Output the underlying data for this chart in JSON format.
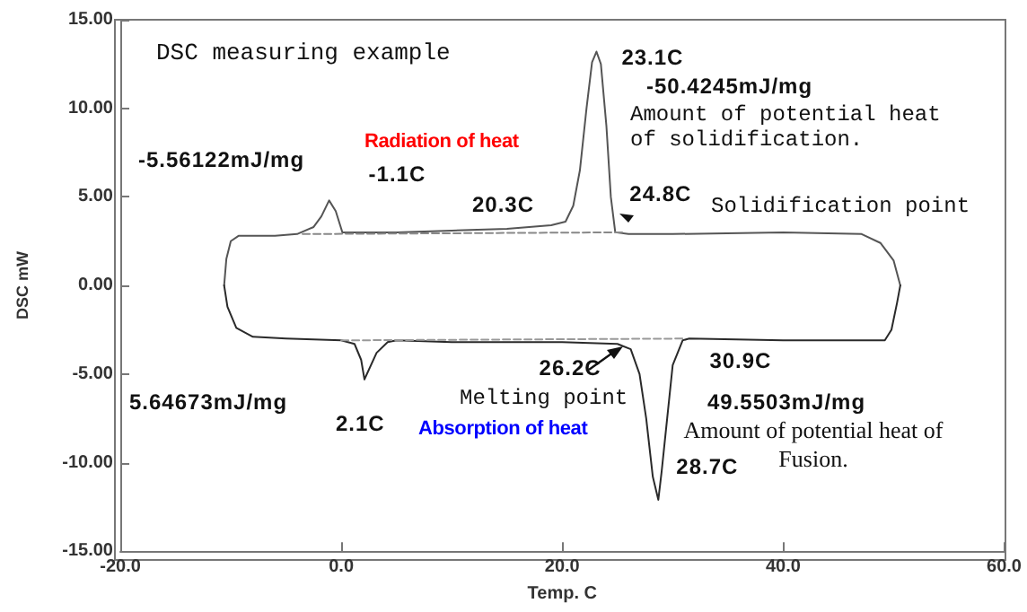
{
  "chart_data": {
    "type": "line",
    "title": "DSC measuring example",
    "xlabel": "Temp. C",
    "ylabel": "DSC mW",
    "xlim": [
      -20,
      60
    ],
    "ylim": [
      -15,
      15
    ],
    "xticks": [
      {
        "value": -20,
        "label": "-20.0"
      },
      {
        "value": 0,
        "label": "0.0"
      },
      {
        "value": 20,
        "label": "20.0"
      },
      {
        "value": 40,
        "label": "40.0"
      },
      {
        "value": 60,
        "label": "60.0"
      }
    ],
    "yticks": [
      {
        "value": -15,
        "label": "-15.00"
      },
      {
        "value": -10,
        "label": "-10.00"
      },
      {
        "value": -5,
        "label": "-5.00"
      },
      {
        "value": 0,
        "label": "0.00"
      },
      {
        "value": 5,
        "label": "5.00"
      },
      {
        "value": 10,
        "label": "10.00"
      },
      {
        "value": 15,
        "label": "15.00"
      }
    ],
    "grid": false,
    "marker": "none",
    "series": [
      {
        "color": "#555555",
        "line_style": "solid",
        "x": [
          -10.6,
          -10.4,
          -10.0,
          -9.3,
          -6,
          -4,
          -2.5,
          -1.8,
          -1.1,
          -0.5,
          0.1,
          5,
          10,
          15,
          19,
          20.3,
          21,
          21.6,
          22.2,
          22.7,
          23.1,
          23.5,
          24,
          24.4,
          24.8,
          26,
          30,
          40,
          47.1,
          48.8,
          50,
          50.6
        ],
        "values": [
          0,
          1.5,
          2.5,
          2.8,
          2.8,
          2.9,
          3.3,
          3.9,
          4.8,
          4.2,
          3.0,
          3.0,
          3.1,
          3.2,
          3.4,
          3.6,
          4.5,
          6.5,
          10,
          12.6,
          13.2,
          12.5,
          9,
          5,
          3.0,
          2.9,
          2.9,
          3.0,
          2.9,
          2.4,
          1.4,
          0
        ]
      },
      {
        "color": "#2a2a2a",
        "line_style": "solid",
        "x": [
          -10.6,
          -10.3,
          -9.5,
          -8,
          -5,
          0,
          1.2,
          1.8,
          2.1,
          3.2,
          4.2,
          5,
          10,
          20,
          25,
          26.2,
          27,
          27.6,
          28.2,
          28.7,
          29,
          29.5,
          30,
          30.9,
          31.5,
          40,
          49.2,
          49.8,
          50.3,
          50.6
        ],
        "values": [
          0,
          -1.2,
          -2.4,
          -2.9,
          -3.0,
          -3.1,
          -3.3,
          -4.2,
          -5.3,
          -3.8,
          -3.2,
          -3.1,
          -3.2,
          -3.2,
          -3.3,
          -3.6,
          -5,
          -7.5,
          -10.8,
          -12.1,
          -10.5,
          -7.5,
          -4.5,
          -3.1,
          -3.0,
          -3.1,
          -3.1,
          -2.5,
          -1,
          0
        ]
      },
      {
        "color": "#888888",
        "line_style": "dashed",
        "x": [
          -3.5,
          25.5
        ],
        "values": [
          2.9,
          3.0
        ]
      },
      {
        "color": "#999999",
        "line_style": "dashed",
        "x": [
          0,
          31
        ],
        "values": [
          -3.1,
          -3.0
        ]
      }
    ],
    "annotations": [
      "-5.56122mJ/mg",
      {
        "text": "-1.1C",
        "x": -1.1,
        "y": 4.8
      },
      {
        "text": "20.3C",
        "x": 20.3,
        "y": 3.6
      },
      {
        "text": "23.1C",
        "x": 23.1,
        "y": 13.2
      },
      "-50.4245mJ/mg",
      "Amount of potential heat of solidification.",
      {
        "text": "24.8C",
        "x": 24.8,
        "y": 3.0
      },
      "Solidification point",
      "Radiation of heat",
      "5.64673mJ/mg",
      {
        "text": "2.1C",
        "x": 2.1,
        "y": -5.3
      },
      "Absorption of heat",
      "Melting point",
      {
        "text": "26.2C",
        "x": 26.2,
        "y": -3.6
      },
      {
        "text": "30.9C",
        "x": 30.9,
        "y": -3.1
      },
      "49.5503mJ/mg",
      "Amount of potential heat of Fusion.",
      {
        "text": "28.7C",
        "x": 28.7,
        "y": -12.1
      }
    ]
  }
}
